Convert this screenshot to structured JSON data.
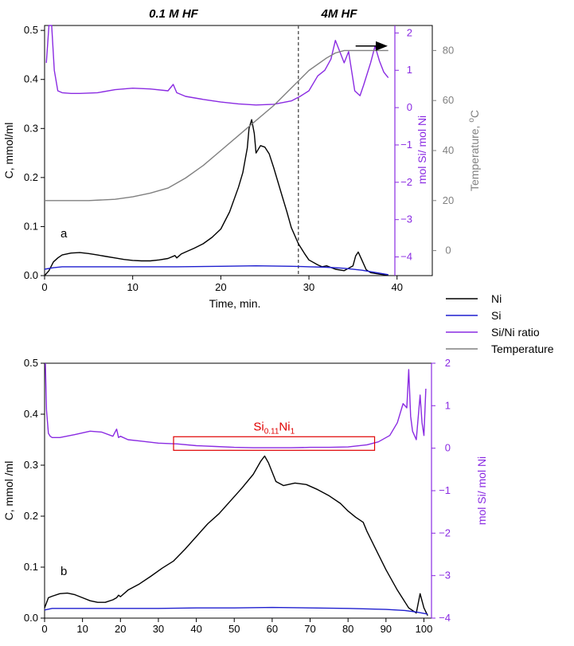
{
  "colors": {
    "ni": "#000000",
    "si": "#1f1fcf",
    "ratio": "#8a2be2",
    "temperature": "#808080",
    "box": "#e00000",
    "divider": "#555555"
  },
  "legend": {
    "placement": "right, between panels",
    "items": [
      {
        "label": "Ni",
        "color": "#000000"
      },
      {
        "label": "Si",
        "color": "#1f1fcf"
      },
      {
        "label": "Si/Ni ratio",
        "color": "#8a2be2"
      },
      {
        "label": "Temperature",
        "color": "#808080"
      }
    ]
  },
  "chart_data": [
    {
      "type": "line",
      "panel_label": "a",
      "region_labels": [
        "0.1 M HF",
        "4M HF"
      ],
      "region_boundary_x": 28.8,
      "xlabel": "Time, min.",
      "ylabel": "C, mmol/ml",
      "y2label": "mol Si/ mol Ni",
      "y3label": "Temperature, °C",
      "y3label_parts": {
        "main": "Temperature, ",
        "sup": "o",
        "unit": "C"
      },
      "xlim": [
        0,
        44
      ],
      "ylim": [
        0,
        0.51
      ],
      "y2lim": [
        -4.5,
        2.2
      ],
      "y3lim": [
        -10,
        90
      ],
      "xticks": [
        0,
        10,
        20,
        30,
        40
      ],
      "yticks": [
        0.0,
        0.1,
        0.2,
        0.3,
        0.4,
        0.5
      ],
      "y2ticks": [
        -4,
        -3,
        -2,
        -1,
        0,
        1,
        2
      ],
      "y3ticks": [
        0,
        20,
        40,
        60,
        80
      ],
      "arrow_annotation": {
        "from": [
          35.3,
          1.65
        ],
        "to": [
          38.8,
          1.65
        ],
        "axis": "y2"
      },
      "series": [
        {
          "name": "Ni",
          "axis": "y",
          "x": [
            0,
            0.5,
            1,
            1.5,
            2,
            3,
            4,
            5,
            6,
            7,
            8,
            9,
            10,
            11,
            12,
            13,
            14,
            14.8,
            15,
            15.5,
            16,
            17,
            18,
            19,
            20,
            21,
            22,
            22.5,
            23,
            23.2,
            23.5,
            23.8,
            24,
            24.5,
            25,
            25.5,
            26,
            26.5,
            27,
            27.5,
            28,
            28.8,
            29.5,
            30,
            31,
            31.5,
            32,
            33,
            34,
            35,
            35.3,
            35.6,
            36,
            36.5,
            37,
            38,
            39
          ],
          "y": [
            0,
            0.01,
            0.028,
            0.036,
            0.042,
            0.046,
            0.047,
            0.045,
            0.042,
            0.039,
            0.036,
            0.033,
            0.031,
            0.03,
            0.03,
            0.032,
            0.035,
            0.041,
            0.036,
            0.044,
            0.048,
            0.056,
            0.065,
            0.078,
            0.095,
            0.13,
            0.18,
            0.21,
            0.26,
            0.3,
            0.318,
            0.29,
            0.25,
            0.265,
            0.262,
            0.248,
            0.22,
            0.19,
            0.16,
            0.13,
            0.098,
            0.065,
            0.045,
            0.032,
            0.022,
            0.018,
            0.02,
            0.013,
            0.01,
            0.02,
            0.04,
            0.048,
            0.032,
            0.012,
            0.006,
            0.003,
            0.001
          ]
        },
        {
          "name": "Si",
          "axis": "y",
          "x": [
            0,
            1,
            2,
            4,
            10,
            15,
            20,
            24,
            28,
            30,
            32,
            34,
            36,
            38,
            39
          ],
          "y": [
            0.013,
            0.016,
            0.018,
            0.018,
            0.018,
            0.018,
            0.019,
            0.02,
            0.019,
            0.018,
            0.017,
            0.015,
            0.011,
            0.005,
            0.002
          ]
        },
        {
          "name": "Si/Ni ratio",
          "axis": "y2",
          "x": [
            0.2,
            0.5,
            0.8,
            1.1,
            1.5,
            2,
            3,
            4,
            6,
            8,
            10,
            12,
            14,
            14.6,
            15,
            16,
            18,
            20,
            22,
            24,
            26,
            28,
            29,
            30,
            31,
            31.8,
            32.5,
            33,
            33.5,
            34,
            34.5,
            35.2,
            35.8,
            36.2,
            37,
            37.5,
            38,
            38.5,
            39
          ],
          "y": [
            1.2,
            2.2,
            2.2,
            1.0,
            0.45,
            0.4,
            0.38,
            0.38,
            0.4,
            0.48,
            0.52,
            0.5,
            0.45,
            0.62,
            0.4,
            0.3,
            0.22,
            0.15,
            0.1,
            0.07,
            0.09,
            0.18,
            0.3,
            0.45,
            0.85,
            1.0,
            1.3,
            1.8,
            1.5,
            1.2,
            1.5,
            0.45,
            0.32,
            0.6,
            1.2,
            1.65,
            1.25,
            0.95,
            0.8
          ]
        },
        {
          "name": "Temperature",
          "axis": "y3",
          "x": [
            0,
            5,
            8,
            10,
            12,
            14,
            16,
            18,
            20,
            22,
            24,
            26,
            28,
            30,
            32,
            33,
            34,
            36,
            38,
            39
          ],
          "y": [
            20,
            20,
            20.5,
            21.5,
            23,
            25,
            29,
            34,
            40,
            46,
            52,
            58,
            65,
            72,
            77,
            79,
            80,
            80,
            80,
            80
          ]
        }
      ]
    },
    {
      "type": "line",
      "panel_label": "b",
      "xlabel": "",
      "ylabel": "C, mmol /ml",
      "y2label": "mol Si/ mol Ni",
      "xlim": [
        0,
        102
      ],
      "ylim": [
        0,
        0.5
      ],
      "y2lim": [
        -4,
        2
      ],
      "xticks": [
        0,
        10,
        20,
        30,
        40,
        50,
        60,
        70,
        80,
        90,
        100
      ],
      "yticks": [
        0.0,
        0.1,
        0.2,
        0.3,
        0.4,
        0.5
      ],
      "y2ticks": [
        -4,
        -3,
        -2,
        -1,
        0,
        1,
        2
      ],
      "annotation_box": {
        "x0": 34,
        "x1": 87,
        "y2_0": -0.05,
        "y2_1": 0.27,
        "text_main": "Si",
        "text_sub1": "0.11",
        "text_mid": "Ni",
        "text_sub2": "1"
      },
      "series": [
        {
          "name": "Ni",
          "axis": "y",
          "x": [
            0,
            1,
            2,
            4,
            6,
            8,
            10,
            12,
            14,
            16,
            18,
            19,
            19.5,
            20,
            22,
            25,
            28,
            31,
            34,
            37,
            40,
            43,
            46,
            49,
            52,
            55,
            57,
            58,
            59,
            61,
            63,
            66,
            69,
            72,
            75,
            78,
            80,
            82,
            84,
            85,
            87,
            90,
            93,
            96,
            98,
            99,
            100,
            101
          ],
          "y": [
            0.02,
            0.04,
            0.043,
            0.048,
            0.049,
            0.046,
            0.04,
            0.034,
            0.031,
            0.031,
            0.036,
            0.04,
            0.045,
            0.042,
            0.055,
            0.067,
            0.082,
            0.098,
            0.112,
            0.135,
            0.16,
            0.185,
            0.205,
            0.23,
            0.255,
            0.282,
            0.308,
            0.318,
            0.305,
            0.268,
            0.26,
            0.265,
            0.262,
            0.252,
            0.24,
            0.225,
            0.21,
            0.198,
            0.188,
            0.17,
            0.14,
            0.095,
            0.055,
            0.02,
            0.01,
            0.048,
            0.02,
            0.005
          ]
        },
        {
          "name": "Si",
          "axis": "y",
          "x": [
            0,
            2,
            10,
            20,
            30,
            40,
            50,
            60,
            70,
            80,
            90,
            95,
            98,
            101
          ],
          "y": [
            0.016,
            0.019,
            0.019,
            0.019,
            0.019,
            0.02,
            0.02,
            0.021,
            0.02,
            0.019,
            0.017,
            0.015,
            0.012,
            0.008
          ]
        },
        {
          "name": "Si/Ni ratio",
          "axis": "y2",
          "x": [
            0.2,
            0.5,
            1,
            1.5,
            2,
            4,
            8,
            12,
            15,
            18,
            19,
            19.5,
            20,
            22,
            25,
            30,
            35,
            40,
            45,
            50,
            55,
            60,
            65,
            70,
            75,
            80,
            85,
            88,
            91,
            93,
            94.5,
            95.5,
            96,
            96.5,
            97,
            98,
            99,
            99.5,
            100,
            100.5
          ],
          "y": [
            2.0,
            0.9,
            0.35,
            0.28,
            0.25,
            0.25,
            0.32,
            0.4,
            0.38,
            0.28,
            0.45,
            0.25,
            0.28,
            0.2,
            0.17,
            0.12,
            0.1,
            0.06,
            0.04,
            0.02,
            0.01,
            0.01,
            0.01,
            0.02,
            0.02,
            0.03,
            0.08,
            0.15,
            0.3,
            0.6,
            1.05,
            0.95,
            1.85,
            0.75,
            0.4,
            0.2,
            1.25,
            0.6,
            0.3,
            1.4
          ]
        }
      ]
    }
  ]
}
